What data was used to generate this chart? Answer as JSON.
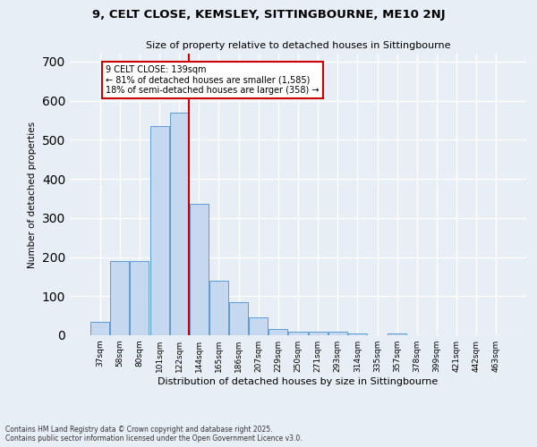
{
  "title1": "9, CELT CLOSE, KEMSLEY, SITTINGBOURNE, ME10 2NJ",
  "title2": "Size of property relative to detached houses in Sittingbourne",
  "xlabel": "Distribution of detached houses by size in Sittingbourne",
  "ylabel": "Number of detached properties",
  "categories": [
    "37sqm",
    "58sqm",
    "80sqm",
    "101sqm",
    "122sqm",
    "144sqm",
    "165sqm",
    "186sqm",
    "207sqm",
    "229sqm",
    "250sqm",
    "271sqm",
    "293sqm",
    "314sqm",
    "335sqm",
    "357sqm",
    "378sqm",
    "399sqm",
    "421sqm",
    "442sqm",
    "463sqm"
  ],
  "values": [
    35,
    190,
    190,
    535,
    570,
    335,
    140,
    85,
    45,
    15,
    10,
    10,
    10,
    5,
    0,
    5,
    0,
    0,
    0,
    0,
    0
  ],
  "bar_color": "#c5d8ef",
  "bar_edge_color": "#5b9bd5",
  "vline_color": "#cc0000",
  "annotation_text": "9 CELT CLOSE: 139sqm\n← 81% of detached houses are smaller (1,585)\n18% of semi-detached houses are larger (358) →",
  "annotation_box_color": "#ffffff",
  "annotation_box_edge_color": "#cc0000",
  "ylim": [
    0,
    720
  ],
  "yticks": [
    0,
    100,
    200,
    300,
    400,
    500,
    600,
    700
  ],
  "footer": "Contains HM Land Registry data © Crown copyright and database right 2025.\nContains public sector information licensed under the Open Government Licence v3.0.",
  "background_color": "#e8eef5",
  "grid_color": "#ffffff"
}
